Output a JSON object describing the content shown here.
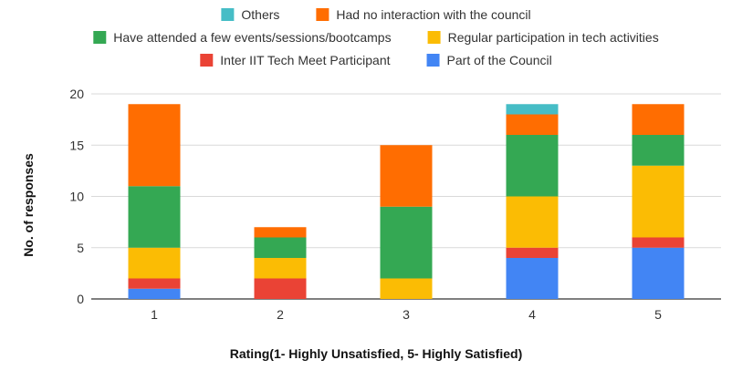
{
  "chart_data": {
    "type": "bar",
    "stacked": true,
    "categories": [
      "1",
      "2",
      "3",
      "4",
      "5"
    ],
    "series": [
      {
        "name": "Part of the Council",
        "color": "#4285F4",
        "values": [
          1,
          0,
          0,
          4,
          5
        ]
      },
      {
        "name": "Inter IIT Tech Meet Participant",
        "color": "#EA4335",
        "values": [
          1,
          2,
          0,
          1,
          1
        ]
      },
      {
        "name": "Regular participation in tech activities",
        "color": "#FBBC04",
        "values": [
          3,
          2,
          2,
          5,
          7
        ]
      },
      {
        "name": "Have attended a few events/sessions/bootcamps",
        "color": "#34A853",
        "values": [
          6,
          2,
          7,
          6,
          3
        ]
      },
      {
        "name": "Had no interaction with the council",
        "color": "#FF6D01",
        "values": [
          8,
          1,
          6,
          2,
          3
        ]
      },
      {
        "name": "Others",
        "color": "#46BDC6",
        "values": [
          0,
          0,
          0,
          1,
          0
        ]
      }
    ],
    "xlabel": "Rating(1- Highly Unsatisfied, 5- Highly Satisfied)",
    "ylabel": "No. of responses",
    "ylim": [
      0,
      20
    ],
    "yticks": [
      0,
      5,
      10,
      15,
      20
    ],
    "grid": true,
    "legend_position": "top"
  }
}
